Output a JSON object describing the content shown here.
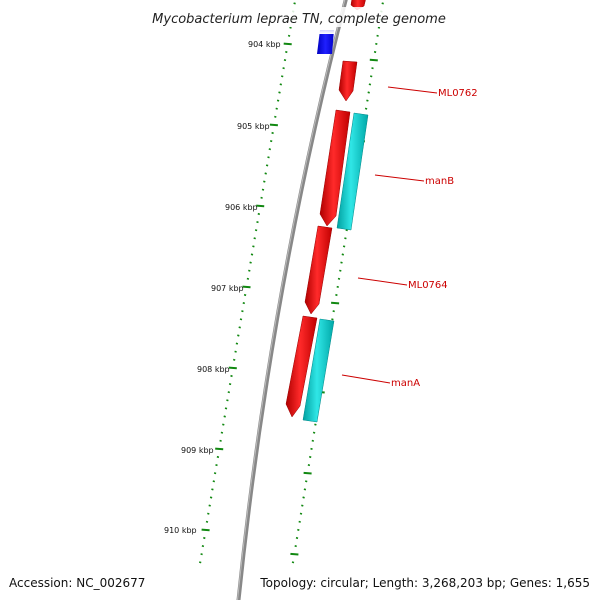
{
  "title": "Mycobacterium leprae TN, complete genome",
  "footer": {
    "accession": "Accession: NC_002677",
    "summary": "Topology: circular; Length: 3,268,203 bp; Genes: 1,655"
  },
  "ruler": {
    "labels": [
      "904 kbp",
      "905 kbp",
      "906 kbp",
      "907 kbp",
      "908 kbp",
      "909 kbp",
      "910 kbp"
    ],
    "tick_color": "#118811"
  },
  "genes": [
    {
      "name": "ML0762",
      "color": "#ee0000"
    },
    {
      "name": "manB",
      "color": "#ee0000"
    },
    {
      "name": "ML0764",
      "color": "#ee0000"
    },
    {
      "name": "manA",
      "color": "#ee0000"
    }
  ],
  "colors": {
    "forward_cds": "#ee0000",
    "reverse_cds": "#00c8c8",
    "other_feature": "#1010ee",
    "backbone": "#808080",
    "label_line": "#cc0000"
  }
}
